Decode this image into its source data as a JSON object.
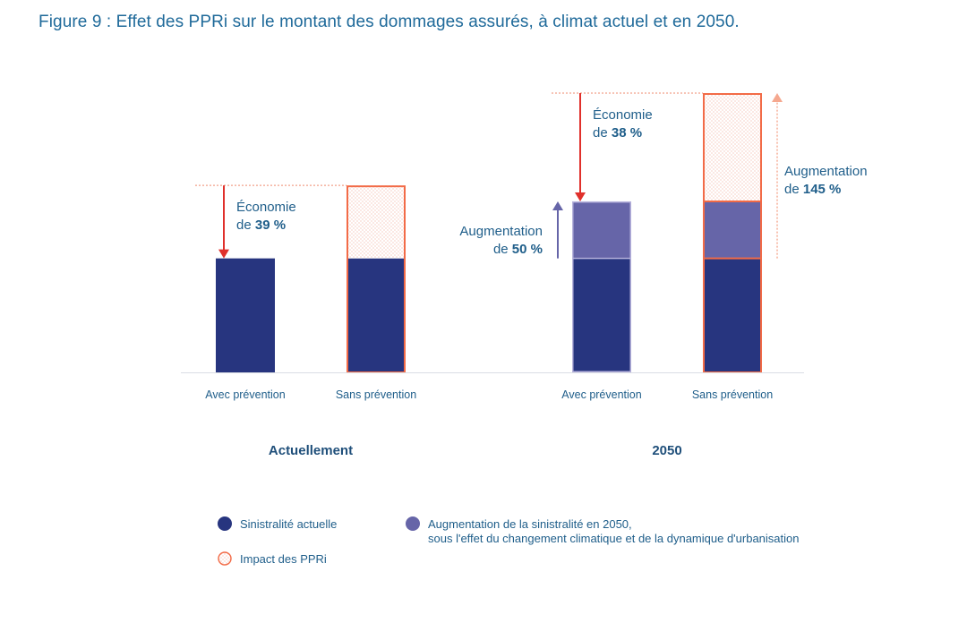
{
  "figure_title": "Figure 9 : Effet des PPRi sur le montant des dommages assurés, à climat actuel et en 2050.",
  "colors": {
    "sinistralite_actuelle": "#27357f",
    "augmentation_2050": "#6665a8",
    "impact_ppri_stroke": "#f26b47",
    "economie_arrow": "#e0302b",
    "augmentation_arrow_ppri": "#f5a88f",
    "augmentation_arrow_climat": "#6665a8",
    "text_blue": "#1f5e8a"
  },
  "chart_data": {
    "type": "bar",
    "stacked": true,
    "groups": [
      "Actuellement",
      "2050"
    ],
    "categories": [
      "Avec prévention",
      "Sans prévention",
      "Avec prévention",
      "Sans prévention"
    ],
    "category_group": [
      0,
      0,
      1,
      1
    ],
    "series": [
      {
        "name": "Sinistralité actuelle",
        "values": [
          100,
          100,
          100,
          100
        ]
      },
      {
        "name": "Augmentation de la sinistralité en 2050, sous l'effet du changement climatique et de la dynamique d'urbanisation",
        "values": [
          0,
          0,
          50,
          50
        ]
      },
      {
        "name": "Impact des PPRi",
        "values": [
          0,
          64,
          0,
          95
        ]
      }
    ],
    "ylim": [
      0,
      250
    ],
    "grid": false,
    "legend_position": "bottom",
    "annotations": [
      {
        "id": "eco-actuel",
        "kind": "decrease",
        "line1": "Économie",
        "line2_prefix": "de ",
        "value_text": "39 %",
        "bar_index": 0,
        "from": 164,
        "to": 100
      },
      {
        "id": "eco-2050",
        "kind": "decrease",
        "line1": "Économie",
        "line2_prefix": "de ",
        "value_text": "38 %",
        "bar_index": 2,
        "from": 245,
        "to": 150
      },
      {
        "id": "aug-climat",
        "kind": "increase",
        "line1": "Augmentation",
        "line2_prefix": "de ",
        "value_text": "50 %",
        "bar_index": 2,
        "from": 100,
        "to": 150
      },
      {
        "id": "aug-total",
        "kind": "increase",
        "line1": "Augmentation",
        "line2_prefix": "de ",
        "value_text": "145 %",
        "bar_index": 3,
        "from": 100,
        "to": 245
      }
    ]
  },
  "legend": [
    {
      "label": "Sinistralité actuelle",
      "kind": "filled",
      "color_key": "sinistralite_actuelle"
    },
    {
      "label": "Augmentation de la sinistralité en 2050,",
      "label2": "sous l'effet du changement climatique et de la dynamique d'urbanisation",
      "kind": "filled",
      "color_key": "augmentation_2050"
    },
    {
      "label": "Impact des PPRi",
      "kind": "hatched",
      "color_key": "impact_ppri_stroke"
    }
  ]
}
